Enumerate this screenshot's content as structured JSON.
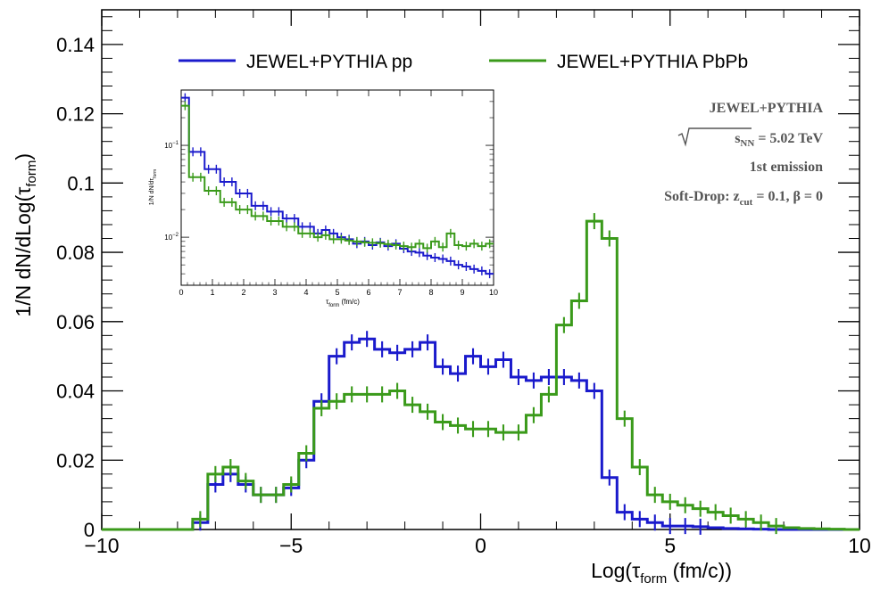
{
  "colors": {
    "pp": "#1a1acc",
    "pbpb": "#3a9a1a",
    "axis": "#000000",
    "text_annot": "#555555"
  },
  "chart_data": [
    {
      "type": "line",
      "step": true,
      "xlabel": "Log(τ_form (fm/c))",
      "xlabel_main": "Log(τ",
      "xlabel_sub": "form",
      "xlabel_tail": " (fm/c))",
      "ylabel_main": "1/N dN/dLog(τ",
      "ylabel_sub": "form",
      "ylabel_tail": ")",
      "xlim": [
        -10,
        10
      ],
      "ylim": [
        0,
        0.15
      ],
      "xticks": [
        -10,
        -5,
        0,
        5,
        10
      ],
      "xtick_labels": [
        "−10",
        "−5",
        "0",
        "5",
        "10"
      ],
      "yticks": [
        0,
        0.02,
        0.04,
        0.06,
        0.08,
        0.1,
        0.12,
        0.14
      ],
      "ytick_labels": [
        "0",
        "0.02",
        "0.04",
        "0.06",
        "0.08",
        "0.1",
        "0.12",
        "0.14"
      ],
      "grid": false,
      "legend_position": "top",
      "annotations": {
        "line1": "JEWEL+PYTHIA",
        "line2_pre": "s",
        "line2_sub": "NN",
        "line2_post": " = 5.02 TeV",
        "line3": "1st emission",
        "line4_pre": "Soft-Drop: z",
        "line4_sub": "cut",
        "line4_post": " = 0.1,  β = 0"
      },
      "bin_edges": [
        -10.0,
        -9.6,
        -9.2,
        -8.8,
        -8.4,
        -8.0,
        -7.6,
        -7.2,
        -6.8,
        -6.4,
        -6.0,
        -5.6,
        -5.2,
        -4.8,
        -4.4,
        -4.0,
        -3.6,
        -3.2,
        -2.8,
        -2.4,
        -2.0,
        -1.6,
        -1.2,
        -0.8,
        -0.4,
        0.0,
        0.4,
        0.8,
        1.2,
        1.6,
        2.0,
        2.4,
        2.8,
        3.2,
        3.6,
        4.0,
        4.4,
        4.8,
        5.2,
        5.6,
        6.0,
        6.4,
        6.8,
        7.2,
        7.6,
        8.0,
        8.4,
        8.8,
        9.2,
        9.6,
        10.0
      ],
      "series": [
        {
          "name": "JEWEL+PYTHIA pp",
          "color_key": "pp",
          "values": [
            0,
            0,
            0,
            0,
            0,
            0,
            0.002,
            0.013,
            0.016,
            0.013,
            0.01,
            0.01,
            0.012,
            0.02,
            0.037,
            0.05,
            0.054,
            0.055,
            0.052,
            0.051,
            0.052,
            0.054,
            0.047,
            0.045,
            0.05,
            0.047,
            0.049,
            0.044,
            0.043,
            0.044,
            0.044,
            0.043,
            0.04,
            0.015,
            0.005,
            0.003,
            0.002,
            0.001,
            0.001,
            0.0008,
            0.0005,
            0.0003,
            0.0002,
            0.0001,
            0,
            0,
            0,
            0,
            0,
            0
          ]
        },
        {
          "name": "JEWEL+PYTHIA PbPb",
          "color_key": "pbpb",
          "values": [
            0,
            0,
            0,
            0,
            0,
            0,
            0.003,
            0.016,
            0.018,
            0.014,
            0.01,
            0.01,
            0.013,
            0.022,
            0.035,
            0.037,
            0.039,
            0.039,
            0.039,
            0.04,
            0.036,
            0.034,
            0.031,
            0.03,
            0.029,
            0.029,
            0.028,
            0.028,
            0.033,
            0.039,
            0.059,
            0.066,
            0.089,
            0.084,
            0.032,
            0.018,
            0.01,
            0.008,
            0.007,
            0.006,
            0.005,
            0.004,
            0.003,
            0.002,
            0.001,
            0.0005,
            0.0003,
            0.0002,
            0.0001,
            0
          ]
        }
      ]
    },
    {
      "type": "line",
      "step": true,
      "inset": true,
      "yscale": "log",
      "xlabel_main": "τ",
      "xlabel_sub": "form",
      "xlabel_tail": " (fm/c)",
      "ylabel_main": "1/N dN/dτ",
      "ylabel_sub": "form",
      "xlim": [
        0,
        10
      ],
      "ylim": [
        0.003,
        0.4
      ],
      "xticks": [
        0,
        1,
        2,
        3,
        4,
        5,
        6,
        7,
        8,
        9,
        10
      ],
      "xtick_labels": [
        "0",
        "1",
        "2",
        "3",
        "4",
        "5",
        "6",
        "7",
        "8",
        "9",
        "10"
      ],
      "ytick_base": "10",
      "ytick_exps": [
        "−1",
        "−2"
      ],
      "ytick_values": [
        0.1,
        0.01
      ],
      "grid": false,
      "bin_edges": [
        0,
        0.25,
        0.5,
        0.75,
        1.0,
        1.25,
        1.5,
        1.75,
        2.0,
        2.25,
        2.5,
        2.75,
        3.0,
        3.25,
        3.5,
        3.75,
        4.0,
        4.25,
        4.5,
        4.75,
        5.0,
        5.25,
        5.5,
        5.75,
        6.0,
        6.25,
        6.5,
        6.75,
        7.0,
        7.25,
        7.5,
        7.75,
        8.0,
        8.25,
        8.5,
        8.75,
        9.0,
        9.25,
        9.5,
        9.75,
        10.0
      ],
      "series": [
        {
          "name": "JEWEL+PYTHIA pp",
          "color_key": "pp",
          "values": [
            0.33,
            0.085,
            0.085,
            0.055,
            0.055,
            0.04,
            0.04,
            0.03,
            0.03,
            0.022,
            0.022,
            0.019,
            0.019,
            0.016,
            0.016,
            0.013,
            0.013,
            0.011,
            0.012,
            0.011,
            0.01,
            0.0095,
            0.0085,
            0.009,
            0.0082,
            0.0088,
            0.008,
            0.0085,
            0.0075,
            0.007,
            0.0068,
            0.0063,
            0.006,
            0.0058,
            0.0055,
            0.005,
            0.0048,
            0.0045,
            0.0043,
            0.004
          ]
        },
        {
          "name": "JEWEL+PYTHIA PbPb",
          "color_key": "pbpb",
          "values": [
            0.27,
            0.045,
            0.045,
            0.032,
            0.032,
            0.024,
            0.024,
            0.02,
            0.02,
            0.017,
            0.017,
            0.015,
            0.015,
            0.013,
            0.013,
            0.011,
            0.011,
            0.01,
            0.0105,
            0.0095,
            0.0095,
            0.0092,
            0.009,
            0.0088,
            0.0087,
            0.0086,
            0.0084,
            0.0082,
            0.008,
            0.0078,
            0.0085,
            0.0076,
            0.009,
            0.0078,
            0.011,
            0.0082,
            0.008,
            0.0085,
            0.008,
            0.0085
          ]
        }
      ]
    }
  ]
}
